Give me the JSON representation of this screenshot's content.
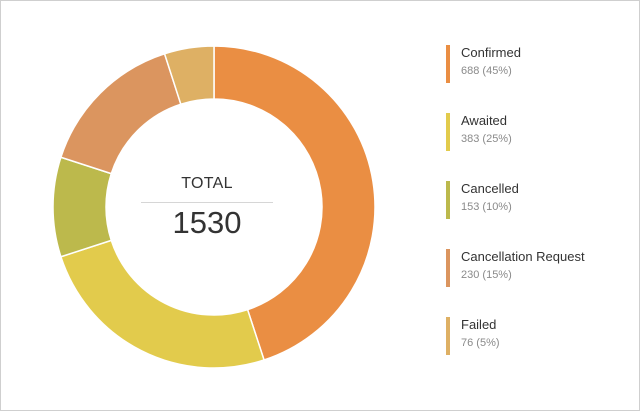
{
  "chart_data": {
    "type": "pie",
    "donut": true,
    "center": {
      "title": "TOTAL",
      "value": "1530"
    },
    "slices": [
      {
        "label": "Confirmed",
        "value": 688,
        "percent_text": "688 (45%)",
        "color": "#ea8e43"
      },
      {
        "label": "Awaited",
        "value": 383,
        "percent_text": "383 (25%)",
        "color": "#e2cb4c"
      },
      {
        "label": "Cancelled",
        "value": 153,
        "percent_text": "153 (10%)",
        "color": "#bcb94c"
      },
      {
        "label": "Cancellation Request",
        "value": 230,
        "percent_text": "230 (15%)",
        "color": "#db955f"
      },
      {
        "label": "Failed",
        "value": 76,
        "percent_text": "76 (5%)",
        "color": "#deb064"
      }
    ],
    "legend_position": "right"
  }
}
